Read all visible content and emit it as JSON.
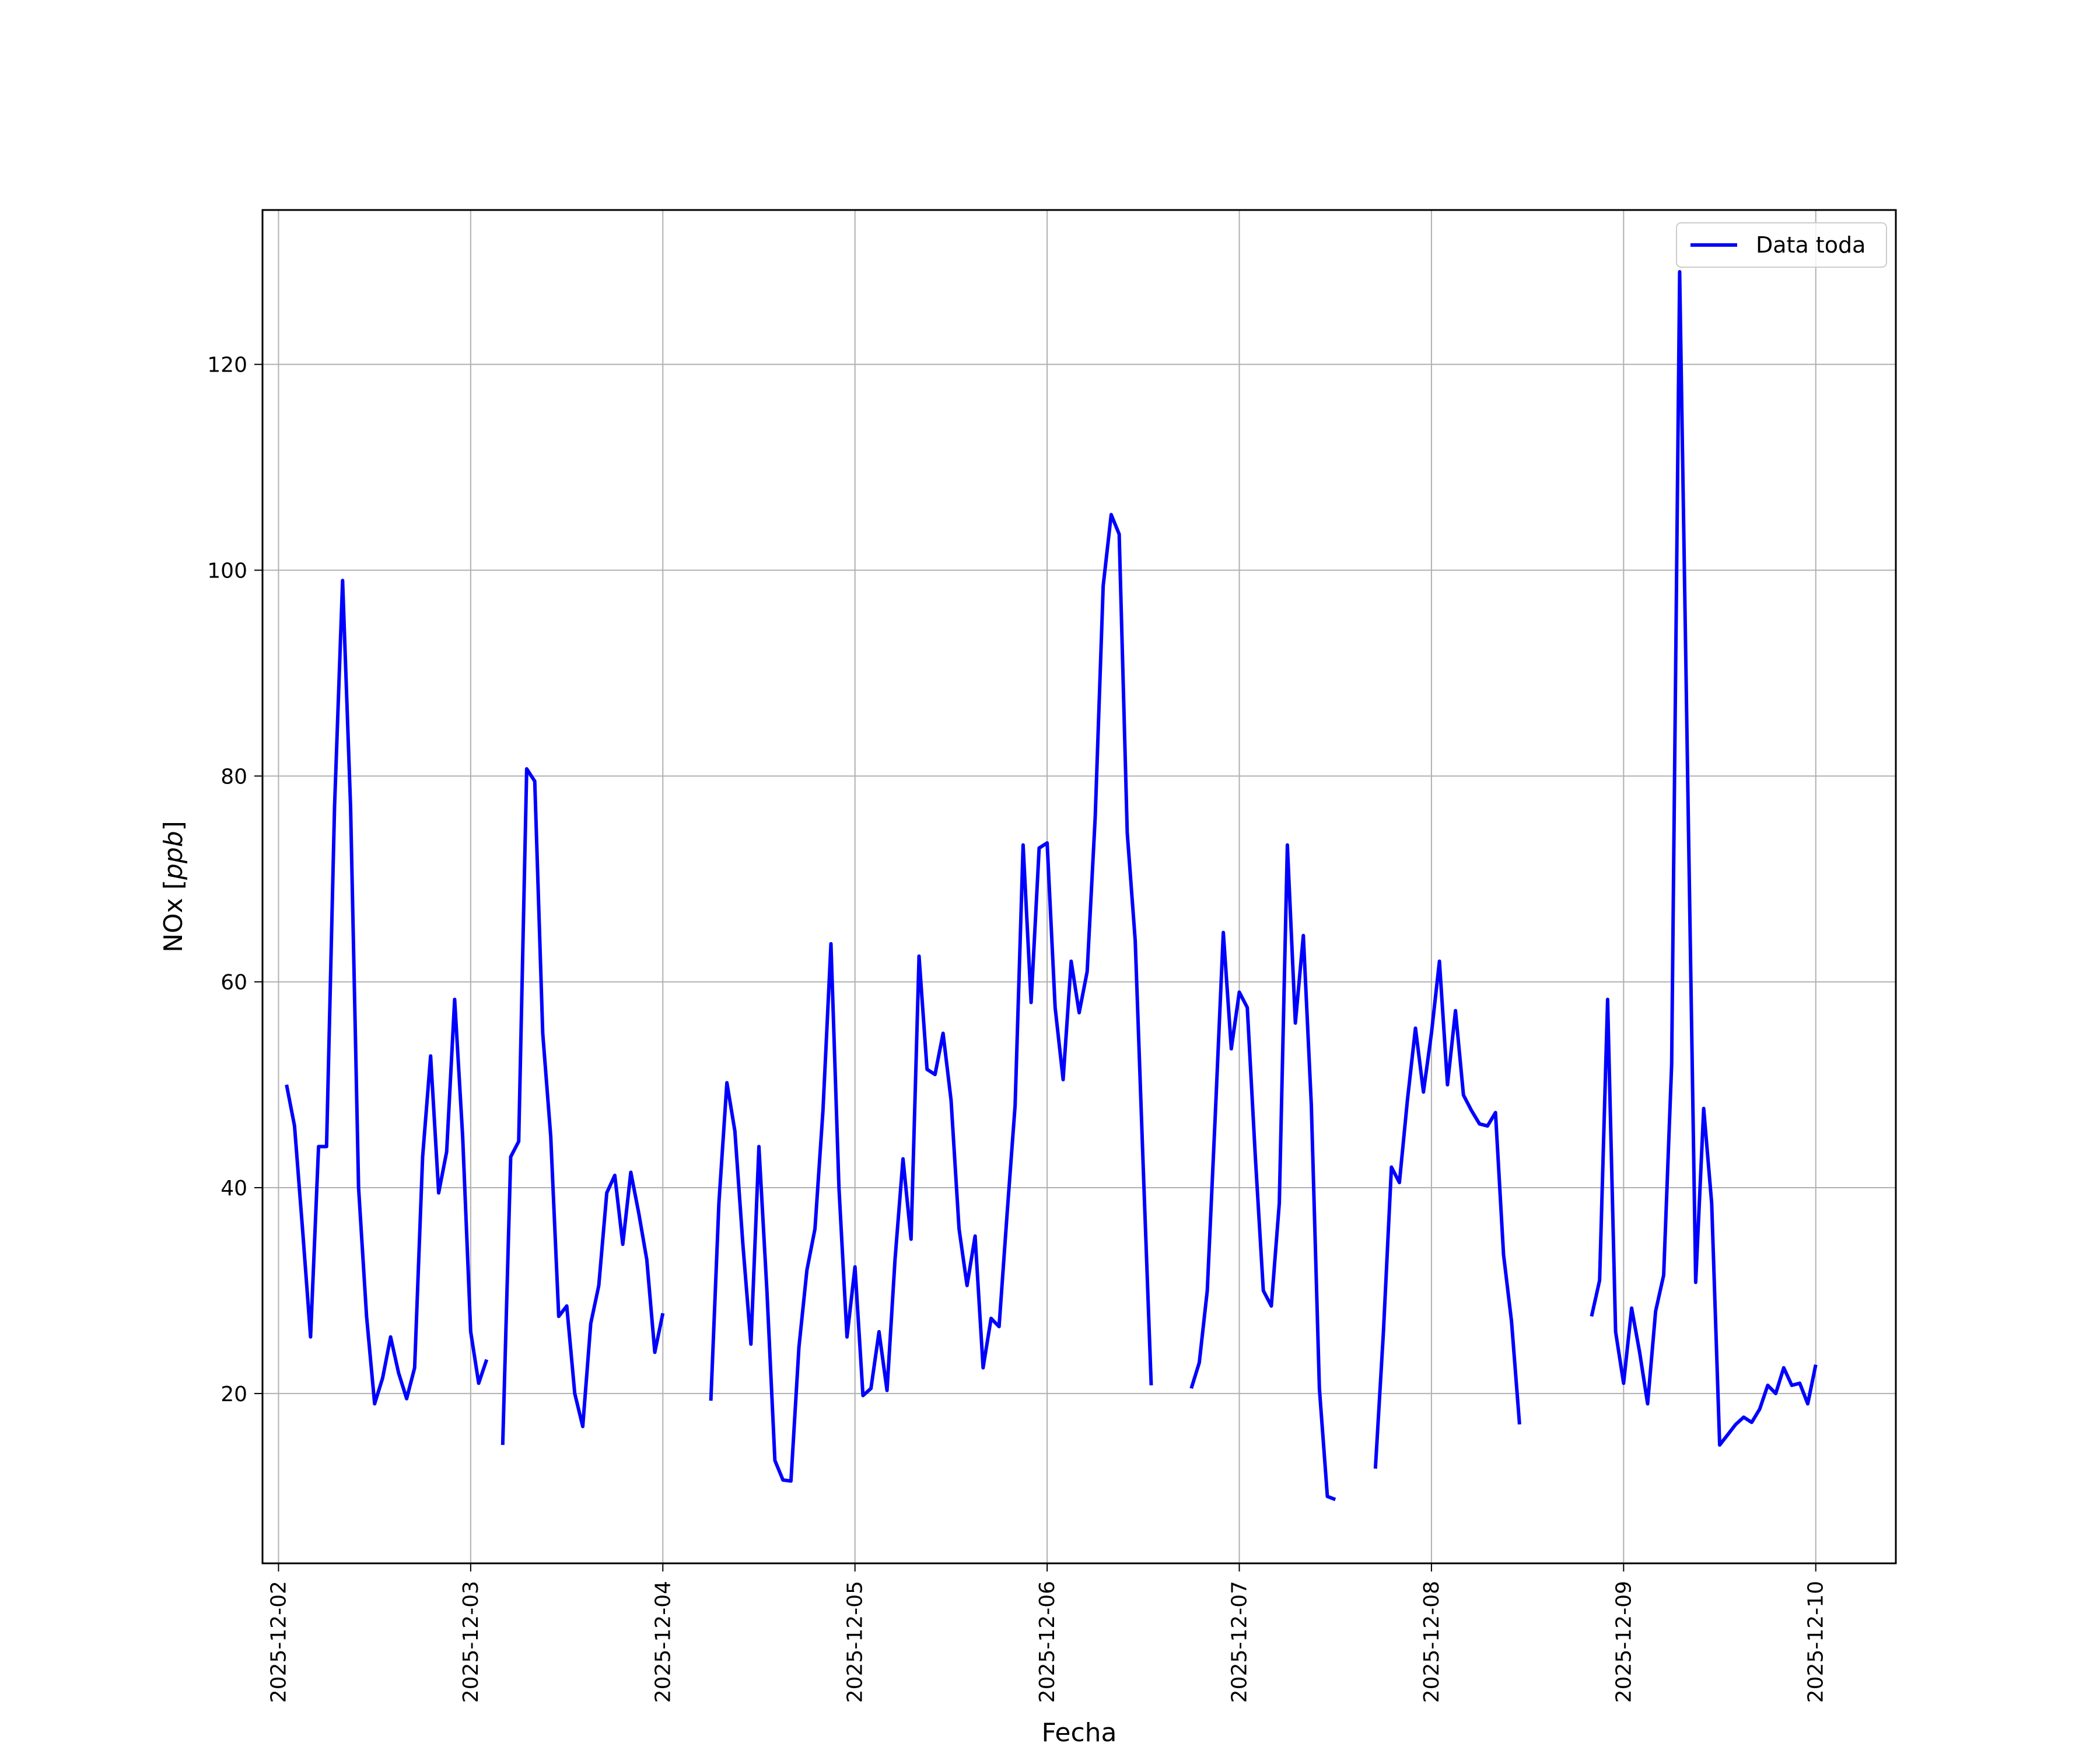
{
  "chart_data": {
    "type": "line",
    "title": "",
    "xlabel": "Fecha",
    "ylabel": "NOx [ppb]",
    "ylabel_text": "NOx [",
    "ylabel_unit": "ppb",
    "ylabel_close": "]",
    "grid": true,
    "legend_position": "top-right",
    "x_unit": "datetime",
    "xlim": [
      "2025-12-01T22:00",
      "2025-12-10T10:00"
    ],
    "ylim": [
      3.5,
      135
    ],
    "x_ticks": [
      "2025-12-02",
      "2025-12-03",
      "2025-12-04",
      "2025-12-05",
      "2025-12-06",
      "2025-12-07",
      "2025-12-08",
      "2025-12-09",
      "2025-12-10"
    ],
    "y_ticks": [
      20,
      40,
      60,
      80,
      100,
      120
    ],
    "y_tick_labels": [
      "20",
      "40",
      "60",
      "80",
      "100",
      "120"
    ],
    "series": [
      {
        "name": "Data toda",
        "color": "#0000ff",
        "segments": [
          [
            [
              "2025-12-02T01:00",
              50.0
            ],
            [
              "2025-12-02T02:00",
              46.0
            ],
            [
              "2025-12-02T03:00",
              36.0
            ],
            [
              "2025-12-02T04:00",
              25.5
            ],
            [
              "2025-12-02T05:00",
              44.0
            ],
            [
              "2025-12-02T06:00",
              44.0
            ],
            [
              "2025-12-02T07:00",
              77.0
            ],
            [
              "2025-12-02T08:00",
              99.0
            ],
            [
              "2025-12-02T09:00",
              77.0
            ],
            [
              "2025-12-02T10:00",
              40.0
            ],
            [
              "2025-12-02T11:00",
              27.5
            ],
            [
              "2025-12-02T12:00",
              19.0
            ],
            [
              "2025-12-02T13:00",
              21.5
            ],
            [
              "2025-12-02T14:00",
              25.5
            ],
            [
              "2025-12-02T15:00",
              22.0
            ],
            [
              "2025-12-02T16:00",
              19.5
            ],
            [
              "2025-12-02T17:00",
              22.5
            ],
            [
              "2025-12-02T18:00",
              43.0
            ],
            [
              "2025-12-02T19:00",
              52.8
            ],
            [
              "2025-12-02T20:00",
              39.5
            ],
            [
              "2025-12-02T21:00",
              43.5
            ],
            [
              "2025-12-02T22:00",
              58.3
            ],
            [
              "2025-12-02T23:00",
              45.0
            ],
            [
              "2025-12-03T00:00",
              26.0
            ],
            [
              "2025-12-03T01:00",
              21.0
            ],
            [
              "2025-12-03T02:00",
              23.3
            ]
          ],
          [
            [
              "2025-12-03T04:00",
              15.0
            ],
            [
              "2025-12-03T05:00",
              43.0
            ],
            [
              "2025-12-03T06:00",
              44.5
            ],
            [
              "2025-12-03T07:00",
              80.7
            ],
            [
              "2025-12-03T08:00",
              79.5
            ],
            [
              "2025-12-03T09:00",
              55.0
            ],
            [
              "2025-12-03T10:00",
              45.0
            ],
            [
              "2025-12-03T11:00",
              27.5
            ],
            [
              "2025-12-03T12:00",
              28.5
            ],
            [
              "2025-12-03T13:00",
              20.0
            ],
            [
              "2025-12-03T14:00",
              16.8
            ],
            [
              "2025-12-03T15:00",
              26.8
            ],
            [
              "2025-12-03T16:00",
              30.5
            ],
            [
              "2025-12-03T17:00",
              39.5
            ],
            [
              "2025-12-03T18:00",
              41.2
            ],
            [
              "2025-12-03T19:00",
              34.5
            ],
            [
              "2025-12-03T20:00",
              41.5
            ],
            [
              "2025-12-03T21:00",
              37.5
            ],
            [
              "2025-12-03T22:00",
              33.0
            ],
            [
              "2025-12-03T23:00",
              24.0
            ],
            [
              "2025-12-04T00:00",
              27.8
            ]
          ],
          [
            [
              "2025-12-04T06:00",
              19.3
            ],
            [
              "2025-12-04T07:00",
              38.5
            ],
            [
              "2025-12-04T08:00",
              50.2
            ],
            [
              "2025-12-04T09:00",
              45.5
            ],
            [
              "2025-12-04T10:00",
              34.5
            ],
            [
              "2025-12-04T11:00",
              24.8
            ],
            [
              "2025-12-04T12:00",
              44.0
            ],
            [
              "2025-12-04T13:00",
              30.0
            ],
            [
              "2025-12-04T14:00",
              13.5
            ],
            [
              "2025-12-04T15:00",
              11.6
            ],
            [
              "2025-12-04T16:00",
              11.5
            ],
            [
              "2025-12-04T17:00",
              24.5
            ],
            [
              "2025-12-04T18:00",
              32.0
            ],
            [
              "2025-12-04T19:00",
              36.0
            ],
            [
              "2025-12-04T20:00",
              47.5
            ],
            [
              "2025-12-04T21:00",
              63.7
            ],
            [
              "2025-12-04T22:00",
              40.0
            ],
            [
              "2025-12-04T23:00",
              25.5
            ],
            [
              "2025-12-05T00:00",
              32.3
            ],
            [
              "2025-12-05T01:00",
              19.8
            ],
            [
              "2025-12-05T02:00",
              20.5
            ],
            [
              "2025-12-05T03:00",
              26.0
            ],
            [
              "2025-12-05T04:00",
              20.3
            ],
            [
              "2025-12-05T05:00",
              33.0
            ],
            [
              "2025-12-05T06:00",
              42.8
            ],
            [
              "2025-12-05T07:00",
              35.0
            ],
            [
              "2025-12-05T08:00",
              62.5
            ],
            [
              "2025-12-05T09:00",
              51.5
            ],
            [
              "2025-12-05T10:00",
              51.0
            ],
            [
              "2025-12-05T11:00",
              55.0
            ],
            [
              "2025-12-05T12:00",
              48.5
            ],
            [
              "2025-12-05T13:00",
              36.0
            ],
            [
              "2025-12-05T14:00",
              30.5
            ],
            [
              "2025-12-05T15:00",
              35.3
            ],
            [
              "2025-12-05T16:00",
              22.5
            ],
            [
              "2025-12-05T17:00",
              27.3
            ],
            [
              "2025-12-05T18:00",
              26.5
            ],
            [
              "2025-12-05T19:00",
              37.5
            ],
            [
              "2025-12-05T20:00",
              48.0
            ],
            [
              "2025-12-05T21:00",
              73.3
            ],
            [
              "2025-12-05T22:00",
              58.0
            ],
            [
              "2025-12-05T23:00",
              73.0
            ],
            [
              "2025-12-06T00:00",
              73.5
            ],
            [
              "2025-12-06T01:00",
              57.5
            ],
            [
              "2025-12-06T02:00",
              50.5
            ],
            [
              "2025-12-06T03:00",
              62.0
            ],
            [
              "2025-12-06T04:00",
              57.0
            ],
            [
              "2025-12-06T05:00",
              61.0
            ],
            [
              "2025-12-06T06:00",
              76.0
            ],
            [
              "2025-12-06T07:00",
              98.5
            ],
            [
              "2025-12-06T08:00",
              105.4
            ],
            [
              "2025-12-06T09:00",
              103.5
            ],
            [
              "2025-12-06T10:00",
              74.5
            ],
            [
              "2025-12-06T11:00",
              64.0
            ],
            [
              "2025-12-06T12:00",
              42.0
            ],
            [
              "2025-12-06T13:00",
              20.8
            ]
          ],
          [
            [
              "2025-12-06T18:00",
              20.5
            ],
            [
              "2025-12-06T19:00",
              23.0
            ],
            [
              "2025-12-06T20:00",
              30.0
            ],
            [
              "2025-12-06T21:00",
              47.0
            ],
            [
              "2025-12-06T22:00",
              64.8
            ],
            [
              "2025-12-06T23:00",
              53.5
            ],
            [
              "2025-12-07T00:00",
              59.0
            ],
            [
              "2025-12-07T01:00",
              57.5
            ],
            [
              "2025-12-07T02:00",
              43.0
            ],
            [
              "2025-12-07T03:00",
              30.0
            ],
            [
              "2025-12-07T04:00",
              28.5
            ],
            [
              "2025-12-07T05:00",
              38.5
            ],
            [
              "2025-12-07T06:00",
              73.3
            ],
            [
              "2025-12-07T07:00",
              56.0
            ],
            [
              "2025-12-07T08:00",
              64.5
            ],
            [
              "2025-12-07T09:00",
              48.0
            ],
            [
              "2025-12-07T10:00",
              20.5
            ],
            [
              "2025-12-07T11:00",
              10.0
            ],
            [
              "2025-12-07T12:00",
              9.7
            ]
          ],
          [
            [
              "2025-12-07T17:00",
              12.7
            ],
            [
              "2025-12-07T18:00",
              26.0
            ],
            [
              "2025-12-07T19:00",
              42.0
            ],
            [
              "2025-12-07T20:00",
              40.5
            ],
            [
              "2025-12-07T21:00",
              48.5
            ],
            [
              "2025-12-07T22:00",
              55.5
            ],
            [
              "2025-12-07T23:00",
              49.3
            ],
            [
              "2025-12-08T00:00",
              55.0
            ],
            [
              "2025-12-08T01:00",
              62.0
            ],
            [
              "2025-12-08T02:00",
              50.0
            ],
            [
              "2025-12-08T03:00",
              57.2
            ],
            [
              "2025-12-08T04:00",
              49.0
            ],
            [
              "2025-12-08T05:00",
              47.5
            ],
            [
              "2025-12-08T06:00",
              46.2
            ],
            [
              "2025-12-08T07:00",
              46.0
            ],
            [
              "2025-12-08T08:00",
              47.3
            ],
            [
              "2025-12-08T09:00",
              33.5
            ],
            [
              "2025-12-08T10:00",
              27.0
            ],
            [
              "2025-12-08T11:00",
              17.0
            ]
          ],
          [
            [
              "2025-12-08T20:00",
              27.5
            ],
            [
              "2025-12-08T21:00",
              31.0
            ],
            [
              "2025-12-08T22:00",
              58.3
            ],
            [
              "2025-12-08T23:00",
              26.0
            ],
            [
              "2025-12-09T00:00",
              21.0
            ],
            [
              "2025-12-09T01:00",
              28.3
            ],
            [
              "2025-12-09T02:00",
              24.0
            ],
            [
              "2025-12-09T03:00",
              19.0
            ],
            [
              "2025-12-09T04:00",
              28.0
            ],
            [
              "2025-12-09T05:00",
              31.5
            ],
            [
              "2025-12-09T06:00",
              52.0
            ],
            [
              "2025-12-09T07:00",
              129.0
            ],
            [
              "2025-12-09T08:00",
              80.0
            ],
            [
              "2025-12-09T09:00",
              30.8
            ],
            [
              "2025-12-09T10:00",
              47.7
            ],
            [
              "2025-12-09T11:00",
              38.5
            ],
            [
              "2025-12-09T12:00",
              15.0
            ],
            [
              "2025-12-09T13:00",
              16.0
            ],
            [
              "2025-12-09T14:00",
              17.0
            ],
            [
              "2025-12-09T15:00",
              17.7
            ],
            [
              "2025-12-09T16:00",
              17.2
            ],
            [
              "2025-12-09T17:00",
              18.5
            ],
            [
              "2025-12-09T18:00",
              20.8
            ],
            [
              "2025-12-09T19:00",
              20.0
            ],
            [
              "2025-12-09T20:00",
              22.5
            ],
            [
              "2025-12-09T21:00",
              20.8
            ],
            [
              "2025-12-09T22:00",
              21.0
            ],
            [
              "2025-12-09T23:00",
              19.0
            ],
            [
              "2025-12-10T00:00",
              22.8
            ]
          ]
        ]
      }
    ]
  }
}
